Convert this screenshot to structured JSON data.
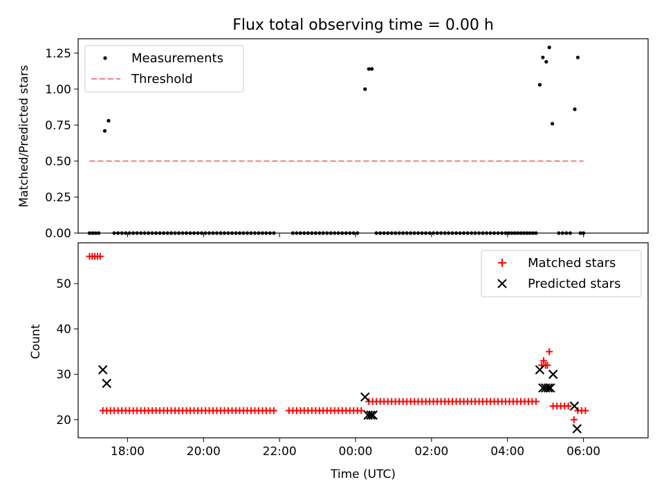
{
  "chart_data": [
    {
      "type": "scatter",
      "title": "Flux total observing time = 0.00 h",
      "xlabel": "",
      "ylabel": "Matched/Predicted stars",
      "xlim": [
        -7.3,
        7.7
      ],
      "ylim": [
        0,
        1.35
      ],
      "yticks": [
        0,
        0.25,
        0.5,
        0.75,
        1.0,
        1.25
      ],
      "ytick_labels": [
        "0.00",
        "0.25",
        "0.50",
        "0.75",
        "1.00",
        "1.25"
      ],
      "legend": {
        "position": "top-left",
        "entries": [
          "Measurements",
          "Threshold"
        ]
      },
      "threshold": {
        "name": "Threshold",
        "value": 0.5,
        "x_range": [
          -7.0,
          6.0
        ],
        "color": "#f08080"
      },
      "series": [
        {
          "name": "Measurements",
          "color": "#000000",
          "marker": "dot",
          "points": [
            [
              -6.6,
              0.71
            ],
            [
              -6.5,
              0.78
            ],
            [
              0.25,
              1.0
            ],
            [
              0.35,
              1.14
            ],
            [
              0.43,
              1.14
            ],
            [
              4.85,
              1.03
            ],
            [
              4.93,
              1.22
            ],
            [
              5.02,
              1.19
            ],
            [
              5.1,
              1.29
            ],
            [
              5.18,
              0.76
            ],
            [
              5.77,
              0.86
            ],
            [
              5.85,
              1.22
            ]
          ],
          "zero_runs": [
            [
              -7.0,
              -6.75,
              0.08
            ],
            [
              -6.35,
              -2.1,
              0.1
            ],
            [
              -1.65,
              0.1,
              0.1
            ],
            [
              0.55,
              3.85,
              0.1
            ],
            [
              3.95,
              4.75,
              0.08
            ],
            [
              5.35,
              5.7,
              0.1
            ],
            [
              5.92,
              6.05,
              0.08
            ]
          ]
        }
      ]
    },
    {
      "type": "scatter",
      "title": "",
      "xlabel": "Time (UTC)",
      "ylabel": "Count",
      "xlim": [
        -7.3,
        7.7
      ],
      "ylim": [
        16,
        59
      ],
      "yticks": [
        20,
        30,
        40,
        50
      ],
      "ytick_labels": [
        "20",
        "30",
        "40",
        "50"
      ],
      "xticks": [
        -6,
        -4,
        -2,
        0,
        2,
        4,
        6
      ],
      "xtick_labels": [
        "18:00",
        "20:00",
        "22:00",
        "00:00",
        "02:00",
        "04:00",
        "06:00"
      ],
      "legend": {
        "position": "top-right",
        "entries": [
          "Matched stars",
          "Predicted stars"
        ]
      },
      "series": [
        {
          "name": "Matched stars",
          "color": "#ff0000",
          "marker": "plus",
          "points": [
            [
              -7.0,
              56
            ],
            [
              -6.93,
              56
            ],
            [
              -6.86,
              56
            ],
            [
              -6.79,
              56
            ],
            [
              -6.72,
              56
            ],
            [
              4.9,
              32
            ],
            [
              4.95,
              33
            ],
            [
              5.0,
              32
            ],
            [
              5.05,
              32
            ],
            [
              5.1,
              35
            ],
            [
              5.75,
              20
            ]
          ],
          "runs": [
            [
              -6.65,
              -2.1,
              22,
              0.1
            ],
            [
              -1.75,
              0.15,
              22,
              0.1
            ],
            [
              0.35,
              4.75,
              24,
              0.1
            ],
            [
              5.2,
              5.65,
              23,
              0.1
            ],
            [
              5.85,
              6.05,
              22,
              0.1
            ]
          ]
        },
        {
          "name": "Predicted stars",
          "color": "#000000",
          "marker": "x",
          "points": [
            [
              -6.65,
              31
            ],
            [
              -6.55,
              28
            ],
            [
              0.25,
              25
            ],
            [
              0.33,
              21
            ],
            [
              0.4,
              21
            ],
            [
              0.46,
              21
            ],
            [
              4.85,
              31
            ],
            [
              4.93,
              27
            ],
            [
              5.0,
              27
            ],
            [
              5.07,
              27
            ],
            [
              5.13,
              27
            ],
            [
              5.2,
              30
            ],
            [
              5.76,
              23
            ],
            [
              5.83,
              18
            ]
          ]
        }
      ]
    }
  ]
}
